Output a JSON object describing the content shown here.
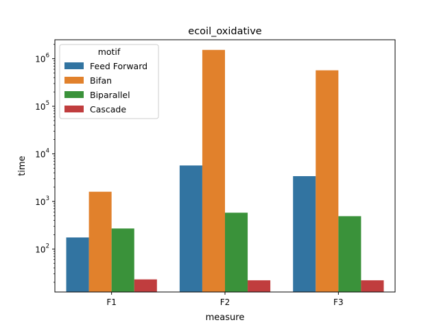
{
  "chart_data": {
    "type": "bar",
    "title": "ecoil_oxidative",
    "xlabel": "measure",
    "ylabel": "time",
    "yscale": "log",
    "ylim": [
      12.5,
      2500000
    ],
    "yticks": [
      100,
      1000,
      10000,
      100000,
      1000000
    ],
    "ytick_labels": [
      {
        "base": "10",
        "exp": "2"
      },
      {
        "base": "10",
        "exp": "3"
      },
      {
        "base": "10",
        "exp": "4"
      },
      {
        "base": "10",
        "exp": "5"
      },
      {
        "base": "10",
        "exp": "6"
      }
    ],
    "categories": [
      "F1",
      "F2",
      "F3"
    ],
    "grid": false,
    "legend": {
      "title": "motif",
      "placement": "upper-left"
    },
    "series": [
      {
        "name": "Feed Forward",
        "color": "#3274a1",
        "values": [
          175,
          5700,
          3400
        ]
      },
      {
        "name": "Bifan",
        "color": "#e1812c",
        "values": [
          1600,
          1530000,
          570000
        ]
      },
      {
        "name": "Biparallel",
        "color": "#3a923a",
        "values": [
          270,
          580,
          490
        ]
      },
      {
        "name": "Cascade",
        "color": "#c03d3e",
        "values": [
          23,
          22,
          22
        ]
      }
    ]
  }
}
